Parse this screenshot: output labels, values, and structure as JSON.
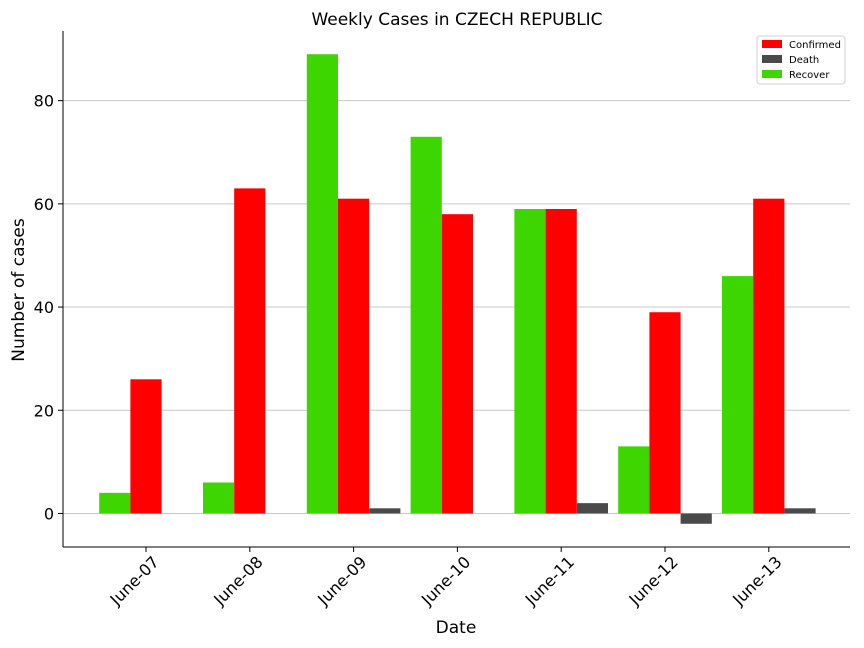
{
  "chart_data": {
    "type": "bar",
    "title": "Weekly Cases in CZECH REPUBLIC",
    "xlabel": "Date",
    "ylabel": "Number of cases",
    "categories": [
      "June-07",
      "June-08",
      "June-09",
      "June-10",
      "June-11",
      "June-12",
      "June-13"
    ],
    "series": [
      {
        "name": "Recover",
        "color": "#3dd600",
        "values": [
          4,
          6,
          89,
          73,
          59,
          13,
          46
        ]
      },
      {
        "name": "Confirmed",
        "color": "#ff0000",
        "values": [
          26,
          63,
          61,
          58,
          59,
          39,
          61
        ]
      },
      {
        "name": "Death",
        "color": "#4a4a4a",
        "values": [
          0,
          0,
          1,
          0,
          2,
          -2,
          1
        ]
      }
    ],
    "legend_order": [
      "Confirmed",
      "Death",
      "Recover"
    ],
    "legend_position": "top-right",
    "ylim": [
      -6.5,
      93.5
    ],
    "yticks": [
      0,
      20,
      40,
      60,
      80
    ],
    "grid": "horizontal"
  }
}
